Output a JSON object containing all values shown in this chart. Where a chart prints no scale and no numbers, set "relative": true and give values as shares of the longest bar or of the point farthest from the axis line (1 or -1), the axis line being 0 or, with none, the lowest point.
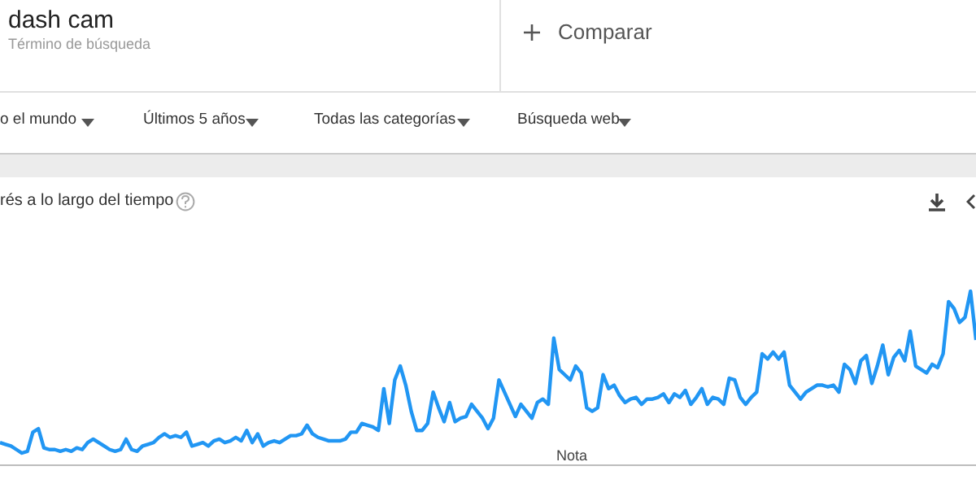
{
  "chart_data": {
    "type": "line",
    "title": "dash cam",
    "subtitle": "Término de búsqueda",
    "annotations": [
      "Comparar",
      "o el mundo",
      "Últimos 5 años",
      "Todas las categorías",
      "Búsqueda web",
      "rés a lo largo del tiempo",
      "Nota"
    ],
    "relative": true,
    "marker": "none",
    "categories": [
      null,
      null,
      null,
      null,
      null,
      null,
      null,
      null,
      null,
      null,
      null,
      null,
      null,
      null,
      null,
      null,
      null,
      null,
      null,
      null,
      null,
      null,
      null,
      null,
      null,
      null,
      null,
      null,
      null,
      null,
      null,
      null,
      null,
      null,
      null,
      null,
      null,
      null,
      null,
      null,
      null,
      null,
      null,
      null,
      null,
      null,
      null,
      null,
      null,
      null,
      null,
      null,
      null,
      null,
      null,
      null,
      null,
      null,
      null,
      null,
      null,
      null,
      null,
      null,
      null,
      null,
      null,
      null,
      null,
      null,
      null,
      null,
      null,
      null,
      null,
      null,
      null,
      null,
      null,
      null,
      null,
      null,
      null,
      null,
      null,
      null,
      null,
      null,
      null,
      null,
      null,
      null,
      null,
      null,
      null,
      null,
      null,
      null,
      null,
      null,
      null,
      null,
      null,
      null,
      null,
      null,
      null,
      null,
      null,
      null,
      null,
      null,
      null,
      null,
      null,
      null,
      null,
      null,
      null,
      null,
      null,
      null,
      null,
      null,
      null,
      null,
      null,
      null,
      null,
      null,
      null,
      null,
      null,
      null,
      null,
      null,
      null,
      null,
      null,
      null,
      null,
      null,
      null,
      null,
      null,
      null,
      null,
      null,
      null,
      null,
      null,
      null,
      null,
      null,
      null,
      null,
      null,
      null,
      null,
      null,
      null,
      null,
      null,
      null,
      null,
      null,
      null,
      null,
      null,
      null,
      null,
      null,
      null,
      null,
      null,
      null,
      null,
      null,
      null
    ],
    "series": [
      {
        "color": "#2196f3",
        "values": [
          0.13,
          0.12,
          0.11,
          0.09,
          0.07,
          0.08,
          0.19,
          0.21,
          0.1,
          0.09,
          0.09,
          0.08,
          0.09,
          0.08,
          0.1,
          0.09,
          0.13,
          0.15,
          0.13,
          0.11,
          0.09,
          0.08,
          0.09,
          0.15,
          0.09,
          0.08,
          0.11,
          0.12,
          0.13,
          0.16,
          0.18,
          0.16,
          0.17,
          0.16,
          0.19,
          0.11,
          0.12,
          0.13,
          0.11,
          0.14,
          0.15,
          0.13,
          0.14,
          0.16,
          0.14,
          0.2,
          0.13,
          0.18,
          0.11,
          0.13,
          0.14,
          0.13,
          0.15,
          0.17,
          0.17,
          0.18,
          0.23,
          0.18,
          0.16,
          0.15,
          0.14,
          0.14,
          0.14,
          0.15,
          0.19,
          0.19,
          0.24,
          0.23,
          0.22,
          0.2,
          0.44,
          0.24,
          0.49,
          0.57,
          0.46,
          0.31,
          0.2,
          0.2,
          0.24,
          0.42,
          0.33,
          0.25,
          0.36,
          0.25,
          0.27,
          0.28,
          0.35,
          0.31,
          0.27,
          0.21,
          0.27,
          0.49,
          0.42,
          0.35,
          0.28,
          0.35,
          0.31,
          0.27,
          0.36,
          0.38,
          0.35,
          0.73,
          0.55,
          0.52,
          0.49,
          0.57,
          0.53,
          0.33,
          0.31,
          0.33,
          0.52,
          0.44,
          0.46,
          0.4,
          0.36,
          0.38,
          0.39,
          0.35,
          0.38,
          0.38,
          0.39,
          0.41,
          0.36,
          0.41,
          0.39,
          0.43,
          0.35,
          0.39,
          0.44,
          0.35,
          0.39,
          0.38,
          0.35,
          0.5,
          0.49,
          0.39,
          0.35,
          0.39,
          0.42,
          0.64,
          0.61,
          0.65,
          0.61,
          0.65,
          0.46,
          0.42,
          0.38,
          0.42,
          0.44,
          0.46,
          0.46,
          0.45,
          0.46,
          0.42,
          0.58,
          0.55,
          0.47,
          0.6,
          0.63,
          0.47,
          0.57,
          0.69,
          0.52,
          0.62,
          0.66,
          0.6,
          0.77,
          0.57,
          0.55,
          0.53,
          0.58,
          0.56,
          0.64,
          0.94,
          0.9,
          0.82,
          0.85,
          1,
          0.72
        ]
      }
    ]
  }
}
